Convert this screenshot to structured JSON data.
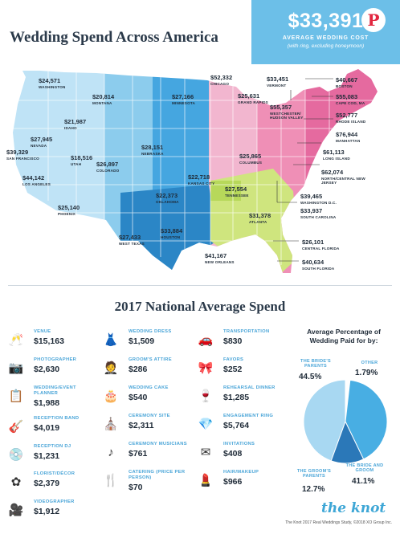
{
  "title": "Wedding Spend Across America",
  "average": {
    "amount": "$33,391",
    "label": "AVERAGE WEDDING COST",
    "sub": "(with ring, excluding honeymoon)"
  },
  "cities": [
    {
      "amount": "$24,571",
      "name": "WASHINGTON"
    },
    {
      "amount": "$20,814",
      "name": "MONTANA"
    },
    {
      "amount": "$21,987",
      "name": "IDAHO"
    },
    {
      "amount": "$27,945",
      "name": "NEVADA"
    },
    {
      "amount": "$39,329",
      "name": "SAN FRANCISCO"
    },
    {
      "amount": "$18,516",
      "name": "UTAH"
    },
    {
      "amount": "$44,142",
      "name": "LOS ANGELES"
    },
    {
      "amount": "$26,897",
      "name": "COLORADO"
    },
    {
      "amount": "$25,140",
      "name": "PHOENIX"
    },
    {
      "amount": "$27,166",
      "name": "MINNESOTA"
    },
    {
      "amount": "$28,151",
      "name": "NEBRASKA"
    },
    {
      "amount": "$22,718",
      "name": "KANSAS CITY"
    },
    {
      "amount": "$22,373",
      "name": "OKLAHOMA"
    },
    {
      "amount": "$27,433",
      "name": "WEST TEXAS"
    },
    {
      "amount": "$33,884",
      "name": "HOUSTON"
    },
    {
      "amount": "$41,167",
      "name": "NEW ORLEANS"
    },
    {
      "amount": "$52,332",
      "name": "CHICAGO"
    },
    {
      "amount": "$25,631",
      "name": "GRAND RAPIDS"
    },
    {
      "amount": "$25,865",
      "name": "COLUMBUS"
    },
    {
      "amount": "$27,554",
      "name": "TENNESSEE"
    },
    {
      "amount": "$31,378",
      "name": "ATLANTA"
    },
    {
      "amount": "$33,451",
      "name": "VERMONT"
    },
    {
      "amount": "$55,357",
      "name": "WESTCHESTER/ HUDSON VALLEY"
    },
    {
      "amount": "$40,667",
      "name": "BOSTON"
    },
    {
      "amount": "$55,083",
      "name": "CAPE COD, MA"
    },
    {
      "amount": "$52,777",
      "name": "RHODE ISLAND"
    },
    {
      "amount": "$76,944",
      "name": "MANHATTAN"
    },
    {
      "amount": "$61,113",
      "name": "LONG ISLAND"
    },
    {
      "amount": "$62,074",
      "name": "NORTH/CENTRAL NEW JERSEY"
    },
    {
      "amount": "$39,465",
      "name": "WASHINGTON D.C."
    },
    {
      "amount": "$33,937",
      "name": "SOUTH CAROLINA"
    },
    {
      "amount": "$26,101",
      "name": "CENTRAL FLORIDA"
    },
    {
      "amount": "$40,634",
      "name": "SOUTH FLORIDA"
    }
  ],
  "spend_title": "2017 National Average Spend",
  "items": [
    {
      "label": "VENUE",
      "value": "$15,163",
      "icon": "champagne-glasses-icon"
    },
    {
      "label": "PHOTOGRAPHER",
      "value": "$2,630",
      "icon": "camera-icon"
    },
    {
      "label": "WEDDING/EVENT PLANNER",
      "value": "$1,988",
      "icon": "clipboard-icon"
    },
    {
      "label": "RECEPTION BAND",
      "value": "$4,019",
      "icon": "guitar-icon"
    },
    {
      "label": "RECEPTION DJ",
      "value": "$1,231",
      "icon": "turntable-icon"
    },
    {
      "label": "FLORIST/DÉCOR",
      "value": "$2,379",
      "icon": "flower-icon"
    },
    {
      "label": "VIDEOGRAPHER",
      "value": "$1,912",
      "icon": "video-camera-icon"
    },
    {
      "label": "WEDDING DRESS",
      "value": "$1,509",
      "icon": "dress-icon"
    },
    {
      "label": "GROOM'S ATTIRE",
      "value": "$286",
      "icon": "suit-icon"
    },
    {
      "label": "WEDDING CAKE",
      "value": "$540",
      "icon": "cake-icon"
    },
    {
      "label": "CEREMONY SITE",
      "value": "$2,311",
      "icon": "church-icon"
    },
    {
      "label": "CEREMONY MUSICIANS",
      "value": "$761",
      "icon": "music-note-icon"
    },
    {
      "label": "CATERING (PRICE PER PERSON)",
      "value": "$70",
      "icon": "fork-knife-icon"
    },
    {
      "label": "TRANSPORTATION",
      "value": "$830",
      "icon": "car-icon"
    },
    {
      "label": "FAVORS",
      "value": "$252",
      "icon": "gift-bow-icon"
    },
    {
      "label": "REHEARSAL DINNER",
      "value": "$1,285",
      "icon": "wine-glasses-icon"
    },
    {
      "label": "ENGAGEMENT RING",
      "value": "$5,764",
      "icon": "diamond-icon"
    },
    {
      "label": "INVITATIONS",
      "value": "$408",
      "icon": "envelope-icon"
    },
    {
      "label": "HAIR/MAKEUP",
      "value": "$966",
      "icon": "lipstick-icon"
    }
  ],
  "pie": {
    "title": "Average Percentage of Wedding Paid for by:",
    "slices": [
      {
        "label": "THE BRIDE'S PARENTS",
        "value": "44.5%",
        "pct": 44.5,
        "color": "#a8d8f2"
      },
      {
        "label": "OTHER",
        "value": "1.79%",
        "pct": 1.79,
        "color": "#ffffff"
      },
      {
        "label": "THE BRIDE AND GROOM",
        "value": "41.1%",
        "pct": 41.1,
        "color": "#48aee3"
      },
      {
        "label": "THE GROOM'S PARENTS",
        "value": "12.7%",
        "pct": 12.7,
        "color": "#2b78b8"
      }
    ]
  },
  "brand": "the knot",
  "source": "The Knot 2017 Real Weddings Study, ©2018 XO Group Inc."
}
